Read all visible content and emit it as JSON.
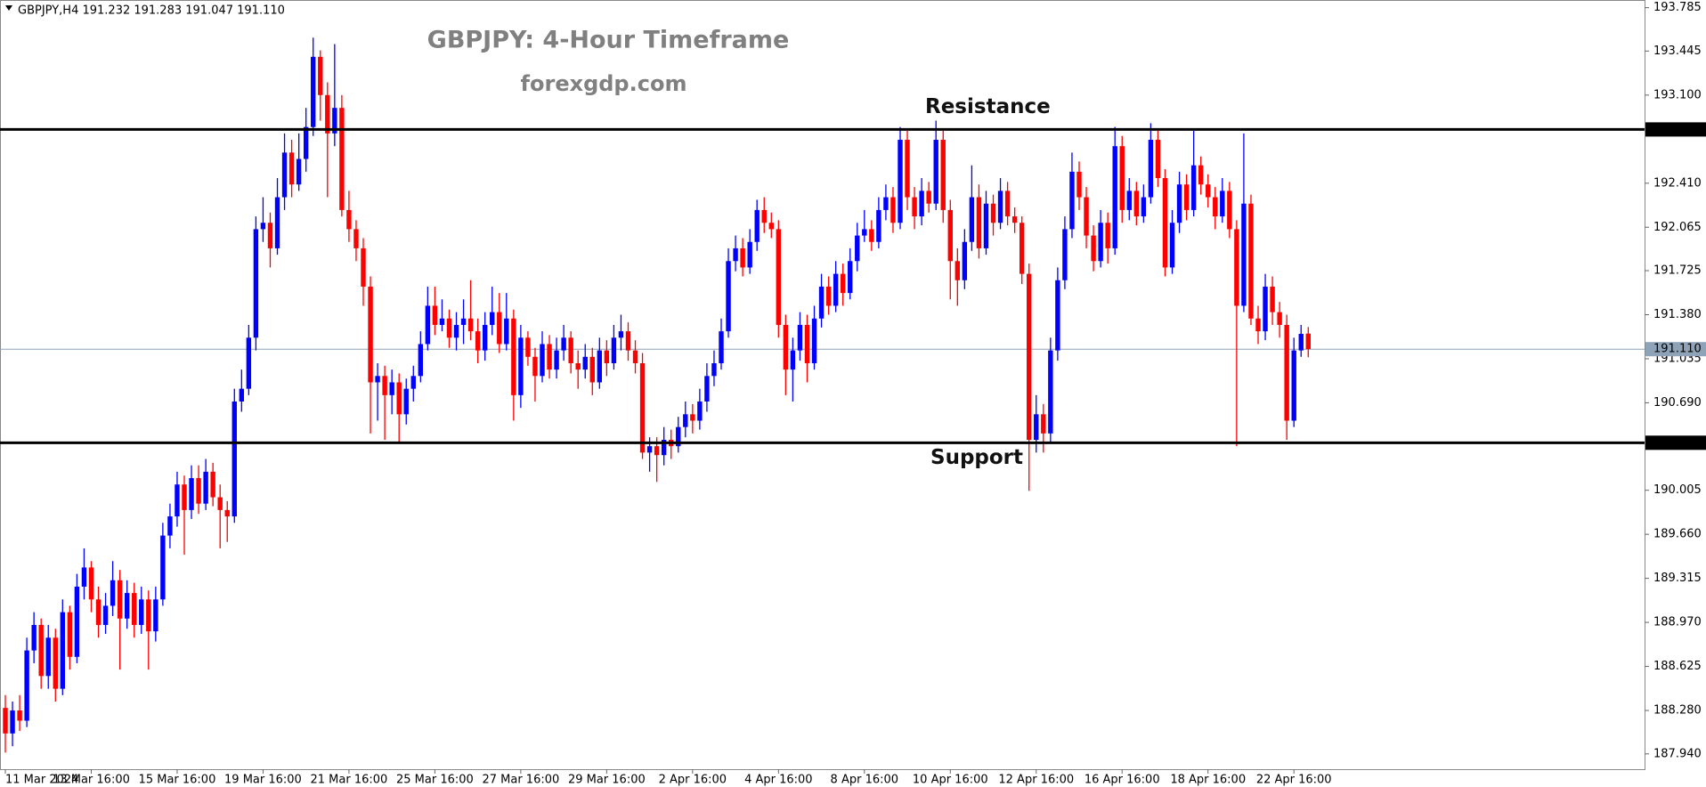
{
  "chart_data": {
    "type": "candlestick",
    "header": "GBPJPY,H4  191.232 191.283 191.047 191.110",
    "title": "GBPJPY: 4-Hour Timeframe",
    "subtitle": "forexgdp.com",
    "up_color": "#0000ff",
    "down_color": "#ff0000",
    "ylim": [
      187.82,
      193.845
    ],
    "yticks": [
      193.785,
      193.445,
      {
        "value": 193.1,
        "label": "193.100"
      },
      {
        "value": 192.41,
        "label": "192.410"
      },
      192.065,
      191.725,
      {
        "value": 191.38,
        "label": "191.380"
      },
      191.035,
      {
        "value": 190.69,
        "label": "190.690"
      },
      190.005,
      {
        "value": 189.66,
        "label": "189.660"
      },
      189.315,
      {
        "value": 188.97,
        "label": "188.970"
      },
      188.625,
      {
        "value": 188.28,
        "label": "188.280"
      },
      {
        "value": 187.94,
        "label": "187.940"
      }
    ],
    "levels": [
      {
        "name": "Resistance",
        "value": 192.831
      },
      {
        "name": "Support",
        "value": 190.377
      }
    ],
    "current": {
      "value": 191.11,
      "label": "191.110"
    },
    "categories": [
      "11 Mar 2024",
      null,
      null,
      null,
      null,
      null,
      null,
      null,
      null,
      null,
      null,
      null,
      "13 Mar 16:00",
      null,
      null,
      null,
      null,
      null,
      null,
      null,
      null,
      null,
      null,
      null,
      "15 Mar 16:00",
      null,
      null,
      null,
      null,
      null,
      null,
      null,
      null,
      null,
      null,
      null,
      "19 Mar 16:00",
      null,
      null,
      null,
      null,
      null,
      null,
      null,
      null,
      null,
      null,
      null,
      "21 Mar 16:00",
      null,
      null,
      null,
      null,
      null,
      null,
      null,
      null,
      null,
      null,
      null,
      "25 Mar 16:00",
      null,
      null,
      null,
      null,
      null,
      null,
      null,
      null,
      null,
      null,
      null,
      "27 Mar 16:00",
      null,
      null,
      null,
      null,
      null,
      null,
      null,
      null,
      null,
      null,
      null,
      "29 Mar 16:00",
      null,
      null,
      null,
      null,
      null,
      null,
      null,
      null,
      null,
      null,
      null,
      "2 Apr 16:00",
      null,
      null,
      null,
      null,
      null,
      null,
      null,
      null,
      null,
      null,
      null,
      "4 Apr 16:00",
      null,
      null,
      null,
      null,
      null,
      null,
      null,
      null,
      null,
      null,
      null,
      "8 Apr 16:00",
      null,
      null,
      null,
      null,
      null,
      null,
      null,
      null,
      null,
      null,
      null,
      "10 Apr 16:00",
      null,
      null,
      null,
      null,
      null,
      null,
      null,
      null,
      null,
      null,
      null,
      "12 Apr 16:00",
      null,
      null,
      null,
      null,
      null,
      null,
      null,
      null,
      null,
      null,
      null,
      "16 Apr 16:00",
      null,
      null,
      null,
      null,
      null,
      null,
      null,
      null,
      null,
      null,
      null,
      "18 Apr 16:00",
      null,
      null,
      null,
      null,
      null,
      null,
      null,
      null,
      null,
      null,
      null,
      "22 Apr 16:00",
      null,
      null
    ],
    "candles": [
      [
        188.3,
        188.4,
        187.95,
        188.1
      ],
      [
        188.1,
        188.35,
        188.0,
        188.28
      ],
      [
        188.28,
        188.4,
        188.12,
        188.2
      ],
      [
        188.2,
        188.85,
        188.15,
        188.75
      ],
      [
        188.75,
        189.05,
        188.65,
        188.95
      ],
      [
        188.95,
        189.0,
        188.45,
        188.55
      ],
      [
        188.55,
        188.95,
        188.45,
        188.85
      ],
      [
        188.85,
        188.92,
        188.35,
        188.45
      ],
      [
        188.45,
        189.15,
        188.4,
        189.05
      ],
      [
        189.05,
        189.1,
        188.6,
        188.7
      ],
      [
        188.7,
        189.35,
        188.65,
        189.25
      ],
      [
        189.25,
        189.55,
        189.15,
        189.4
      ],
      [
        189.4,
        189.45,
        189.05,
        189.15
      ],
      [
        189.15,
        189.25,
        188.85,
        188.95
      ],
      [
        188.95,
        189.2,
        188.88,
        189.1
      ],
      [
        189.1,
        189.45,
        189.02,
        189.3
      ],
      [
        189.3,
        189.38,
        188.6,
        189.0
      ],
      [
        189.0,
        189.3,
        188.92,
        189.2
      ],
      [
        189.2,
        189.28,
        188.85,
        188.95
      ],
      [
        188.95,
        189.25,
        188.88,
        189.15
      ],
      [
        189.15,
        189.22,
        188.6,
        188.9
      ],
      [
        188.9,
        189.25,
        188.82,
        189.15
      ],
      [
        189.15,
        189.75,
        189.1,
        189.65
      ],
      [
        189.65,
        189.9,
        189.55,
        189.8
      ],
      [
        189.8,
        190.15,
        189.72,
        190.05
      ],
      [
        190.05,
        190.12,
        189.5,
        189.85
      ],
      [
        189.85,
        190.2,
        189.78,
        190.1
      ],
      [
        190.1,
        190.2,
        189.82,
        189.9
      ],
      [
        189.9,
        190.25,
        189.85,
        190.15
      ],
      [
        190.15,
        190.22,
        189.88,
        189.95
      ],
      [
        189.95,
        190.05,
        189.55,
        189.85
      ],
      [
        189.85,
        189.92,
        189.6,
        189.8
      ],
      [
        189.8,
        190.8,
        189.75,
        190.7
      ],
      [
        190.7,
        190.95,
        190.62,
        190.8
      ],
      [
        190.8,
        191.3,
        190.75,
        191.2
      ],
      [
        191.2,
        192.15,
        191.1,
        192.05
      ],
      [
        192.05,
        192.3,
        191.95,
        192.1
      ],
      [
        192.1,
        192.18,
        191.75,
        191.9
      ],
      [
        191.9,
        192.45,
        191.85,
        192.3
      ],
      [
        192.3,
        192.8,
        192.2,
        192.65
      ],
      [
        192.65,
        192.75,
        192.3,
        192.4
      ],
      [
        192.4,
        192.8,
        192.35,
        192.6
      ],
      [
        192.6,
        193.0,
        192.5,
        192.85
      ],
      [
        192.85,
        193.55,
        192.78,
        193.4
      ],
      [
        193.4,
        193.45,
        192.9,
        193.1
      ],
      [
        193.1,
        193.2,
        192.3,
        192.8
      ],
      [
        192.8,
        193.5,
        192.7,
        193.0
      ],
      [
        193.0,
        193.1,
        192.15,
        192.2
      ],
      [
        192.2,
        192.35,
        191.95,
        192.05
      ],
      [
        192.05,
        192.12,
        191.8,
        191.9
      ],
      [
        191.9,
        191.98,
        191.45,
        191.6
      ],
      [
        191.6,
        191.68,
        190.45,
        190.85
      ],
      [
        190.85,
        191.0,
        190.55,
        190.9
      ],
      [
        190.9,
        190.98,
        190.4,
        190.75
      ],
      [
        190.75,
        190.95,
        190.6,
        190.85
      ],
      [
        190.85,
        190.92,
        190.38,
        190.6
      ],
      [
        190.6,
        190.88,
        190.52,
        190.8
      ],
      [
        190.8,
        190.98,
        190.7,
        190.9
      ],
      [
        190.9,
        191.25,
        190.85,
        191.15
      ],
      [
        191.15,
        191.6,
        191.1,
        191.45
      ],
      [
        191.45,
        191.6,
        191.22,
        191.3
      ],
      [
        191.3,
        191.5,
        191.25,
        191.35
      ],
      [
        191.35,
        191.42,
        191.12,
        191.2
      ],
      [
        191.2,
        191.4,
        191.1,
        191.3
      ],
      [
        191.3,
        191.5,
        191.15,
        191.35
      ],
      [
        191.35,
        191.65,
        191.18,
        191.25
      ],
      [
        191.25,
        191.35,
        191.0,
        191.1
      ],
      [
        191.1,
        191.4,
        191.02,
        191.3
      ],
      [
        191.3,
        191.6,
        191.22,
        191.4
      ],
      [
        191.4,
        191.55,
        191.08,
        191.15
      ],
      [
        191.15,
        191.55,
        191.1,
        191.35
      ],
      [
        191.35,
        191.42,
        190.55,
        190.75
      ],
      [
        190.75,
        191.3,
        190.65,
        191.2
      ],
      [
        191.2,
        191.25,
        190.98,
        191.05
      ],
      [
        191.05,
        191.12,
        190.7,
        190.9
      ],
      [
        190.9,
        191.25,
        190.85,
        191.15
      ],
      [
        191.15,
        191.22,
        190.88,
        190.95
      ],
      [
        190.95,
        191.2,
        190.88,
        191.1
      ],
      [
        191.1,
        191.3,
        191.02,
        191.2
      ],
      [
        191.2,
        191.25,
        190.92,
        191.0
      ],
      [
        191.0,
        191.1,
        190.8,
        190.95
      ],
      [
        190.95,
        191.15,
        190.88,
        191.05
      ],
      [
        191.05,
        191.12,
        190.75,
        190.85
      ],
      [
        190.85,
        191.2,
        190.8,
        191.1
      ],
      [
        191.1,
        191.18,
        190.9,
        191.0
      ],
      [
        191.0,
        191.3,
        190.95,
        191.2
      ],
      [
        191.2,
        191.38,
        191.1,
        191.25
      ],
      [
        191.25,
        191.32,
        191.02,
        191.1
      ],
      [
        191.1,
        191.18,
        190.92,
        191.0
      ],
      [
        191.0,
        191.08,
        190.25,
        190.3
      ],
      [
        190.3,
        190.42,
        190.15,
        190.35
      ],
      [
        190.35,
        190.42,
        190.07,
        190.28
      ],
      [
        190.28,
        190.5,
        190.2,
        190.4
      ],
      [
        190.4,
        190.48,
        190.25,
        190.35
      ],
      [
        190.35,
        190.58,
        190.3,
        190.5
      ],
      [
        190.5,
        190.7,
        190.42,
        190.6
      ],
      [
        190.6,
        190.68,
        190.45,
        190.55
      ],
      [
        190.55,
        190.8,
        190.48,
        190.7
      ],
      [
        190.7,
        191.0,
        190.62,
        190.9
      ],
      [
        190.9,
        191.1,
        190.82,
        191.0
      ],
      [
        191.0,
        191.35,
        190.95,
        191.25
      ],
      [
        191.25,
        191.9,
        191.2,
        191.8
      ],
      [
        191.8,
        192.0,
        191.72,
        191.9
      ],
      [
        191.9,
        191.98,
        191.68,
        191.75
      ],
      [
        191.75,
        192.05,
        191.7,
        191.95
      ],
      [
        191.95,
        192.28,
        191.88,
        192.2
      ],
      [
        192.2,
        192.3,
        192.02,
        192.1
      ],
      [
        192.1,
        192.18,
        191.98,
        192.05
      ],
      [
        192.05,
        192.12,
        191.2,
        191.3
      ],
      [
        191.3,
        191.38,
        190.75,
        190.95
      ],
      [
        190.95,
        191.2,
        190.7,
        191.1
      ],
      [
        191.1,
        191.4,
        191.02,
        191.3
      ],
      [
        191.3,
        191.38,
        190.85,
        191.0
      ],
      [
        191.0,
        191.45,
        190.95,
        191.35
      ],
      [
        191.35,
        191.7,
        191.28,
        191.6
      ],
      [
        191.6,
        191.68,
        191.38,
        191.45
      ],
      [
        191.45,
        191.8,
        191.4,
        191.7
      ],
      [
        191.7,
        191.78,
        191.45,
        191.55
      ],
      [
        191.55,
        191.9,
        191.5,
        191.8
      ],
      [
        191.8,
        192.1,
        191.72,
        192.0
      ],
      [
        192.0,
        192.2,
        191.95,
        192.05
      ],
      [
        192.05,
        192.12,
        191.88,
        191.95
      ],
      [
        191.95,
        192.3,
        191.9,
        192.2
      ],
      [
        192.2,
        192.4,
        192.12,
        192.3
      ],
      [
        192.3,
        192.38,
        192.02,
        192.1
      ],
      [
        192.1,
        192.85,
        192.05,
        192.75
      ],
      [
        192.75,
        192.82,
        192.2,
        192.3
      ],
      [
        192.3,
        192.38,
        192.05,
        192.15
      ],
      [
        192.15,
        192.45,
        192.08,
        192.35
      ],
      [
        192.35,
        192.42,
        192.18,
        192.25
      ],
      [
        192.25,
        192.9,
        192.2,
        192.75
      ],
      [
        192.75,
        192.82,
        192.1,
        192.2
      ],
      [
        192.2,
        192.28,
        191.5,
        191.8
      ],
      [
        191.8,
        191.9,
        191.45,
        191.65
      ],
      [
        191.65,
        192.05,
        191.58,
        191.95
      ],
      [
        191.95,
        192.55,
        191.88,
        192.3
      ],
      [
        192.3,
        192.4,
        191.82,
        191.9
      ],
      [
        191.9,
        192.35,
        191.85,
        192.25
      ],
      [
        192.25,
        192.32,
        192.0,
        192.1
      ],
      [
        192.1,
        192.45,
        192.05,
        192.35
      ],
      [
        192.35,
        192.42,
        192.08,
        192.15
      ],
      [
        192.15,
        192.22,
        192.02,
        192.1
      ],
      [
        192.1,
        192.15,
        191.62,
        191.7
      ],
      [
        191.7,
        191.78,
        190.0,
        190.4
      ],
      [
        190.4,
        190.75,
        190.3,
        190.6
      ],
      [
        190.6,
        190.68,
        190.3,
        190.45
      ],
      [
        190.45,
        191.2,
        190.38,
        191.1
      ],
      [
        191.1,
        191.75,
        191.02,
        191.65
      ],
      [
        191.65,
        192.15,
        191.58,
        192.05
      ],
      [
        192.05,
        192.65,
        191.98,
        192.5
      ],
      [
        192.5,
        192.58,
        192.2,
        192.3
      ],
      [
        192.3,
        192.38,
        191.9,
        192.0
      ],
      [
        192.0,
        192.08,
        191.72,
        191.8
      ],
      [
        191.8,
        192.2,
        191.75,
        192.1
      ],
      [
        192.1,
        192.18,
        191.78,
        191.9
      ],
      [
        191.9,
        192.85,
        191.85,
        192.7
      ],
      [
        192.7,
        192.78,
        192.1,
        192.2
      ],
      [
        192.2,
        192.45,
        192.12,
        192.35
      ],
      [
        192.35,
        192.42,
        192.08,
        192.15
      ],
      [
        192.15,
        192.4,
        192.1,
        192.3
      ],
      [
        192.3,
        192.88,
        192.25,
        192.75
      ],
      [
        192.75,
        192.82,
        192.38,
        192.45
      ],
      [
        192.45,
        192.52,
        191.68,
        191.75
      ],
      [
        191.75,
        192.2,
        191.7,
        192.1
      ],
      [
        192.1,
        192.5,
        192.02,
        192.4
      ],
      [
        192.4,
        192.48,
        192.12,
        192.2
      ],
      [
        192.2,
        192.82,
        192.15,
        192.55
      ],
      [
        192.55,
        192.62,
        192.32,
        192.4
      ],
      [
        192.4,
        192.48,
        192.22,
        192.3
      ],
      [
        192.3,
        192.38,
        192.05,
        192.15
      ],
      [
        192.15,
        192.45,
        192.1,
        192.35
      ],
      [
        192.35,
        192.42,
        191.98,
        192.05
      ],
      [
        192.05,
        192.12,
        190.35,
        191.45
      ],
      [
        191.45,
        192.8,
        191.4,
        192.25
      ],
      [
        192.25,
        192.32,
        191.3,
        191.35
      ],
      [
        191.35,
        191.45,
        191.15,
        191.25
      ],
      [
        191.25,
        191.7,
        191.18,
        191.6
      ],
      [
        191.6,
        191.68,
        191.3,
        191.4
      ],
      [
        191.4,
        191.48,
        191.2,
        191.3
      ],
      [
        191.3,
        191.38,
        190.4,
        190.55
      ],
      [
        190.55,
        191.2,
        190.5,
        191.1
      ],
      [
        191.1,
        191.3,
        191.05,
        191.23
      ],
      [
        191.232,
        191.283,
        191.047,
        191.11
      ]
    ]
  }
}
